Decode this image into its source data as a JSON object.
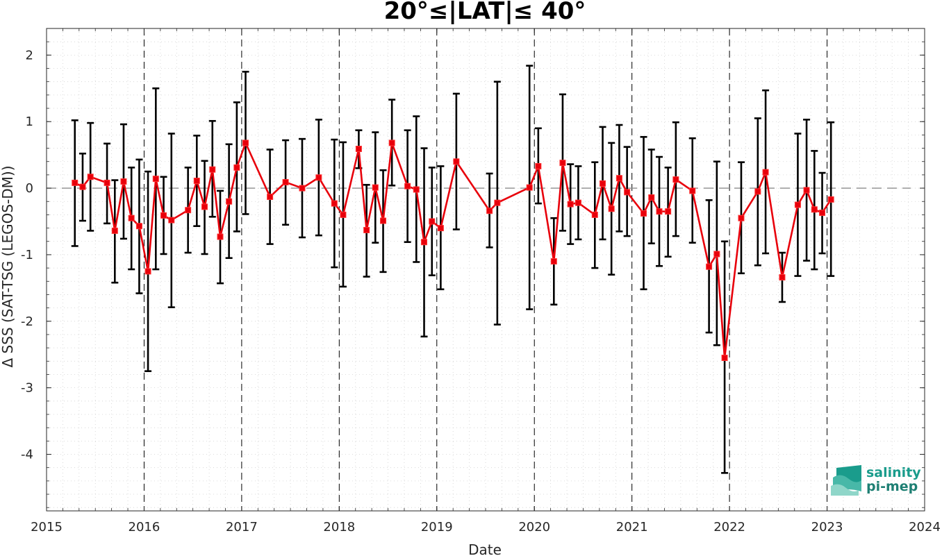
{
  "chart_data": {
    "type": "line",
    "title": "20°≤|LAT|≤ 40°",
    "xlabel": "Date",
    "ylabel": "Δ SSS (SAT-TSG (LEGOS-DM))",
    "xlim": [
      2015,
      2024
    ],
    "ylim": [
      -4.85,
      2.4
    ],
    "x_ticks": [
      "2015",
      "2016",
      "2017",
      "2018",
      "2019",
      "2020",
      "2021",
      "2022",
      "2023",
      "2024"
    ],
    "y_ticks": [
      "2",
      "1",
      "0",
      "-1",
      "-2",
      "-3",
      "-4"
    ],
    "grid": "minor dotted",
    "zero_line": "dashed gray at 0",
    "year_boundaries": "dashed black vertical lines at each January",
    "colors": {
      "series": "#e8000b",
      "errorbar": "#000000",
      "zero": "#8c8c8c"
    },
    "series": [
      {
        "x": [
          2015.29,
          2015.37,
          2015.45,
          2015.62,
          2015.7,
          2015.79,
          2015.87,
          2015.95,
          2016.04,
          2016.12,
          2016.2,
          2016.28,
          2016.45,
          2016.54,
          2016.62,
          2016.7,
          2016.78,
          2016.87,
          2016.95,
          2017.04,
          2017.29,
          2017.45,
          2017.62,
          2017.79,
          2017.95,
          2018.04,
          2018.2,
          2018.28,
          2018.37,
          2018.45,
          2018.54,
          2018.7,
          2018.79,
          2018.87,
          2018.95,
          2019.04,
          2019.2,
          2019.54,
          2019.62,
          2019.95,
          2020.04,
          2020.2,
          2020.29,
          2020.37,
          2020.45,
          2020.62,
          2020.7,
          2020.79,
          2020.87,
          2020.95,
          2021.12,
          2021.2,
          2021.28,
          2021.37,
          2021.45,
          2021.62,
          2021.79,
          2021.87,
          2021.95,
          2022.12,
          2022.29,
          2022.37,
          2022.54,
          2022.7,
          2022.79,
          2022.87,
          2022.95,
          2023.04
        ],
        "y": [
          0.08,
          0.02,
          0.17,
          0.08,
          -0.64,
          0.1,
          -0.45,
          -0.57,
          -1.25,
          0.14,
          -0.41,
          -0.48,
          -0.33,
          0.11,
          -0.28,
          0.28,
          -0.73,
          -0.2,
          0.31,
          0.68,
          -0.13,
          0.09,
          0.0,
          0.16,
          -0.23,
          -0.4,
          0.59,
          -0.63,
          0.01,
          -0.49,
          0.68,
          0.03,
          -0.02,
          -0.81,
          -0.5,
          -0.6,
          0.4,
          -0.34,
          -0.22,
          0.01,
          0.33,
          -1.1,
          0.38,
          -0.24,
          -0.22,
          -0.4,
          0.07,
          -0.31,
          0.15,
          -0.06,
          -0.38,
          -0.14,
          -0.35,
          -0.35,
          0.13,
          -0.04,
          -1.18,
          -0.99,
          -2.55,
          -0.45,
          -0.05,
          0.24,
          -1.34,
          -0.25,
          -0.03,
          -0.32,
          -0.37,
          -0.17
        ],
        "err_low": [
          -0.87,
          -0.49,
          -0.64,
          -0.53,
          -1.42,
          -0.76,
          -1.22,
          -1.58,
          -2.75,
          -1.22,
          -0.99,
          -1.79,
          -0.97,
          -0.57,
          -0.99,
          -0.43,
          -1.43,
          -1.05,
          -0.65,
          -0.39,
          -0.84,
          -0.55,
          -0.74,
          -0.71,
          -1.19,
          -1.48,
          0.3,
          -1.33,
          -0.82,
          -1.26,
          0.04,
          -0.81,
          -1.11,
          -2.23,
          -1.31,
          -1.52,
          -0.62,
          -0.89,
          -2.05,
          -1.82,
          -0.23,
          -1.75,
          -0.64,
          -0.84,
          -0.77,
          -1.2,
          -0.77,
          -1.3,
          -0.65,
          -0.72,
          -1.52,
          -0.83,
          -1.17,
          -1.03,
          -0.72,
          -0.82,
          -2.17,
          -2.36,
          -4.28,
          -1.28,
          -1.16,
          -0.98,
          -1.71,
          -1.32,
          -1.09,
          -1.22,
          -0.98,
          -1.32
        ],
        "err_high": [
          1.02,
          0.52,
          0.98,
          0.67,
          0.12,
          0.96,
          0.31,
          0.43,
          0.25,
          1.5,
          0.17,
          0.82,
          0.31,
          0.79,
          0.41,
          1.01,
          -0.04,
          0.66,
          1.29,
          1.75,
          0.58,
          0.72,
          0.74,
          1.03,
          0.73,
          0.69,
          0.87,
          0.05,
          0.84,
          0.27,
          1.33,
          0.87,
          1.08,
          0.6,
          0.31,
          0.33,
          1.42,
          0.22,
          1.6,
          1.84,
          0.9,
          -0.45,
          1.41,
          0.36,
          0.33,
          0.39,
          0.92,
          0.68,
          0.95,
          0.62,
          0.77,
          0.58,
          0.47,
          0.31,
          0.99,
          0.75,
          -0.18,
          0.4,
          -0.8,
          0.39,
          1.05,
          1.47,
          -0.97,
          0.82,
          1.03,
          0.56,
          0.23,
          0.99
        ]
      }
    ]
  },
  "logo": {
    "line1": "salinity",
    "line2": "pi-mep",
    "name": "salinity-pimep-logo"
  }
}
